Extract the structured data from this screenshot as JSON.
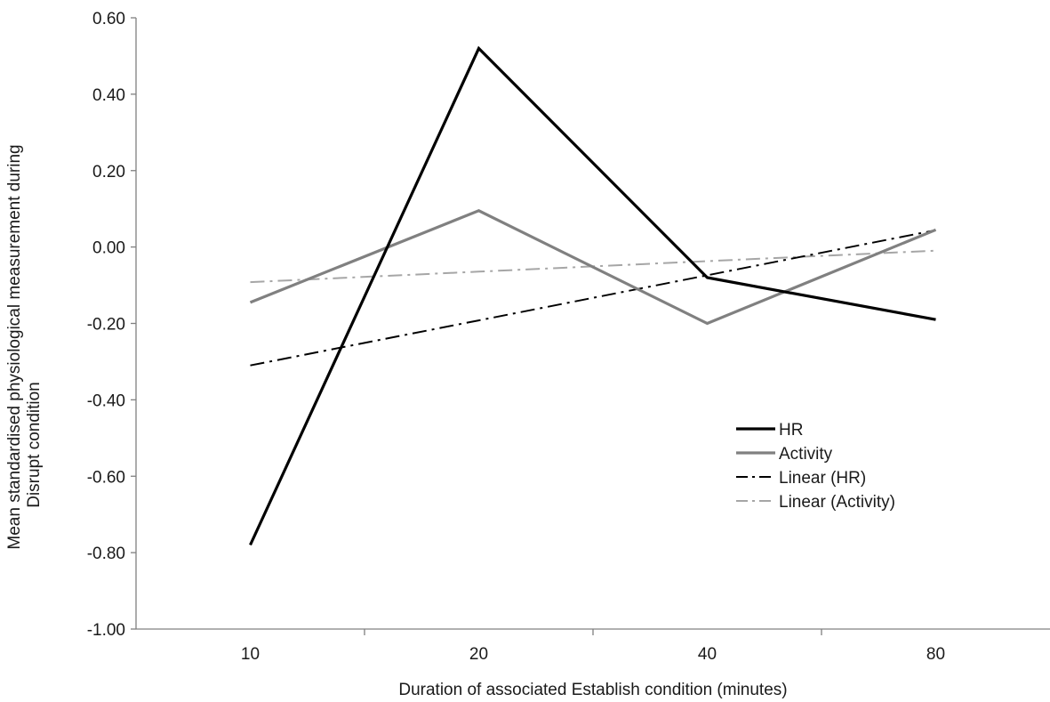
{
  "chart_data": {
    "type": "line",
    "title": "",
    "xlabel": "Duration of associated Establish condition (minutes)",
    "ylabel_lines": [
      "Mean standardised physiological measurement during",
      "Disrupt  condition"
    ],
    "categories": [
      "10",
      "20",
      "40",
      "80"
    ],
    "ylim": [
      -1.0,
      0.6
    ],
    "yticks": [
      0.6,
      0.4,
      0.2,
      0.0,
      -0.2,
      -0.4,
      -0.6,
      -0.8,
      -1.0
    ],
    "ytick_labels": [
      "0.60",
      "0.40",
      "0.20",
      "0.00",
      "-0.20",
      "-0.40",
      "-0.60",
      "-0.80",
      "-1.00"
    ],
    "grid": false,
    "legend_position": "center-right",
    "series": [
      {
        "name": "HR",
        "values": [
          -0.78,
          0.52,
          -0.08,
          -0.19
        ],
        "color": "#000000",
        "style": "solid"
      },
      {
        "name": "Activity",
        "values": [
          -0.145,
          0.095,
          -0.2,
          0.045
        ],
        "color": "#808080",
        "style": "solid"
      },
      {
        "name": "Linear (HR)",
        "values": [
          -0.31,
          -0.192,
          -0.074,
          0.044
        ],
        "color": "#000000",
        "style": "dashdot"
      },
      {
        "name": "Linear (Activity)",
        "values": [
          -0.092,
          -0.0645,
          -0.037,
          -0.0095
        ],
        "color": "#a6a6a6",
        "style": "dashdot"
      }
    ]
  }
}
